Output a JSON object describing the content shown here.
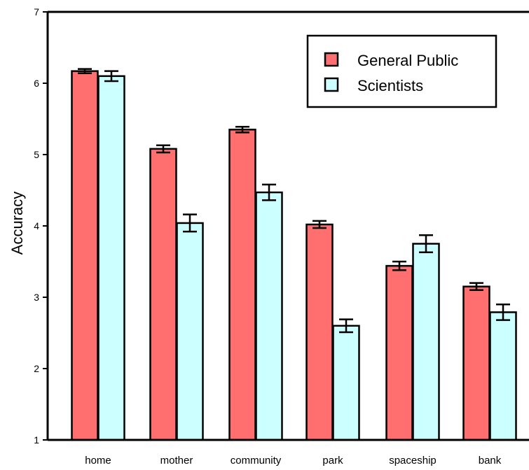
{
  "chart_data": {
    "type": "bar",
    "title": "",
    "xlabel": "",
    "ylabel": "Accuracy",
    "ylim": [
      1,
      7
    ],
    "yticks": [
      1,
      2,
      3,
      4,
      5,
      6,
      7
    ],
    "grid": false,
    "legend_position": "top-right",
    "categories": [
      "home",
      "mother",
      "community",
      "park",
      "spaceship",
      "bank"
    ],
    "series": [
      {
        "name": "General Public",
        "color": "#FF6F6F",
        "values": [
          6.17,
          5.08,
          5.35,
          4.02,
          3.44,
          3.15
        ],
        "errors": [
          0.03,
          0.05,
          0.04,
          0.05,
          0.06,
          0.05
        ]
      },
      {
        "name": "Scientists",
        "color": "#CCFFFF",
        "values": [
          6.1,
          4.04,
          4.47,
          2.6,
          3.75,
          2.79
        ],
        "errors": [
          0.07,
          0.12,
          0.11,
          0.09,
          0.12,
          0.11
        ]
      }
    ]
  }
}
